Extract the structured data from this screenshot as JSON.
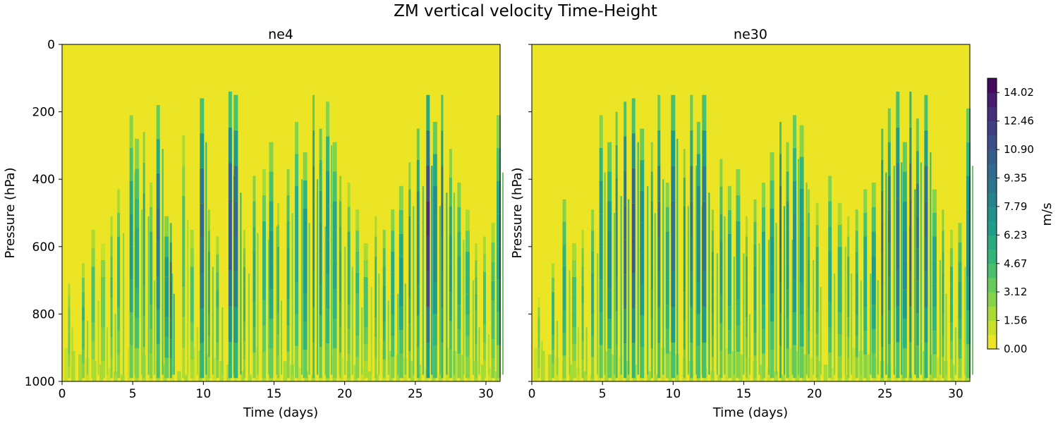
{
  "figure": {
    "title": "ZM vertical velocity Time-Height"
  },
  "chart_data": [
    {
      "type": "heatmap",
      "title": "ne4",
      "xlabel": "Time (days)",
      "ylabel": "Pressure (hPa)",
      "xlim": [
        0,
        31
      ],
      "ylim": [
        1000,
        0
      ],
      "xticks": [
        "0",
        "5",
        "10",
        "15",
        "20",
        "25",
        "30"
      ],
      "yticks": [
        "0",
        "200",
        "400",
        "600",
        "800",
        "1000"
      ],
      "background_value": 0.0,
      "convective_events": [
        {
          "t": 0.5,
          "top": 720,
          "max": 4.5
        },
        {
          "t": 1.5,
          "top": 660,
          "max": 5.5
        },
        {
          "t": 2.2,
          "top": 560,
          "max": 5.0
        },
        {
          "t": 2.9,
          "top": 600,
          "max": 4.0
        },
        {
          "t": 3.5,
          "top": 520,
          "max": 5.5
        },
        {
          "t": 4.0,
          "top": 440,
          "max": 6.0
        },
        {
          "t": 4.9,
          "top": 220,
          "max": 7.5
        },
        {
          "t": 5.3,
          "top": 290,
          "max": 6.5
        },
        {
          "t": 5.8,
          "top": 270,
          "max": 7.0
        },
        {
          "t": 6.3,
          "top": 420,
          "max": 6.0
        },
        {
          "t": 6.8,
          "top": 190,
          "max": 10.0
        },
        {
          "t": 7.4,
          "top": 520,
          "max": 8.0
        },
        {
          "t": 7.7,
          "top": 540,
          "max": 11.0
        },
        {
          "t": 8.6,
          "top": 280,
          "max": 5.0
        },
        {
          "t": 9.2,
          "top": 560,
          "max": 5.0
        },
        {
          "t": 9.9,
          "top": 170,
          "max": 11.0
        },
        {
          "t": 10.4,
          "top": 500,
          "max": 7.0
        },
        {
          "t": 11.0,
          "top": 580,
          "max": 5.5
        },
        {
          "t": 11.9,
          "top": 150,
          "max": 12.0
        },
        {
          "t": 12.3,
          "top": 160,
          "max": 11.0
        },
        {
          "t": 12.9,
          "top": 560,
          "max": 6.0
        },
        {
          "t": 13.6,
          "top": 400,
          "max": 6.5
        },
        {
          "t": 14.3,
          "top": 380,
          "max": 6.0
        },
        {
          "t": 14.8,
          "top": 300,
          "max": 7.5
        },
        {
          "t": 15.3,
          "top": 480,
          "max": 6.0
        },
        {
          "t": 16.0,
          "top": 380,
          "max": 6.5
        },
        {
          "t": 16.6,
          "top": 240,
          "max": 7.0
        },
        {
          "t": 17.2,
          "top": 330,
          "max": 8.0
        },
        {
          "t": 17.8,
          "top": 160,
          "max": 9.0
        },
        {
          "t": 18.3,
          "top": 260,
          "max": 8.5
        },
        {
          "t": 18.8,
          "top": 180,
          "max": 8.0
        },
        {
          "t": 19.3,
          "top": 300,
          "max": 7.0
        },
        {
          "t": 19.7,
          "top": 400,
          "max": 6.5
        },
        {
          "t": 20.3,
          "top": 420,
          "max": 6.0
        },
        {
          "t": 20.9,
          "top": 500,
          "max": 5.5
        },
        {
          "t": 21.5,
          "top": 600,
          "max": 5.0
        },
        {
          "t": 22.2,
          "top": 520,
          "max": 6.0
        },
        {
          "t": 22.8,
          "top": 560,
          "max": 6.5
        },
        {
          "t": 23.4,
          "top": 500,
          "max": 7.0
        },
        {
          "t": 24.0,
          "top": 430,
          "max": 7.5
        },
        {
          "t": 24.6,
          "top": 360,
          "max": 8.0
        },
        {
          "t": 25.2,
          "top": 260,
          "max": 9.0
        },
        {
          "t": 25.9,
          "top": 160,
          "max": 14.5
        },
        {
          "t": 26.4,
          "top": 240,
          "max": 9.0
        },
        {
          "t": 26.9,
          "top": 160,
          "max": 11.0
        },
        {
          "t": 27.5,
          "top": 320,
          "max": 7.5
        },
        {
          "t": 28.1,
          "top": 420,
          "max": 6.5
        },
        {
          "t": 28.7,
          "top": 500,
          "max": 6.0
        },
        {
          "t": 29.3,
          "top": 600,
          "max": 5.5
        },
        {
          "t": 29.9,
          "top": 580,
          "max": 5.0
        },
        {
          "t": 30.5,
          "top": 540,
          "max": 5.5
        },
        {
          "t": 30.9,
          "top": 220,
          "max": 7.0
        }
      ]
    },
    {
      "type": "heatmap",
      "title": "ne30",
      "xlabel": "Time (days)",
      "ylabel": "Pressure (hPa)",
      "xlim": [
        0,
        31
      ],
      "ylim": [
        1000,
        0
      ],
      "xticks": [
        "0",
        "5",
        "10",
        "15",
        "20",
        "25",
        "30"
      ],
      "yticks": [],
      "background_value": 0.0,
      "convective_events": [
        {
          "t": 0.5,
          "top": 760,
          "max": 4.0
        },
        {
          "t": 1.5,
          "top": 660,
          "max": 6.0
        },
        {
          "t": 2.3,
          "top": 470,
          "max": 6.5
        },
        {
          "t": 3.0,
          "top": 600,
          "max": 5.0
        },
        {
          "t": 3.6,
          "top": 560,
          "max": 5.5
        },
        {
          "t": 4.3,
          "top": 500,
          "max": 6.5
        },
        {
          "t": 4.9,
          "top": 220,
          "max": 8.0
        },
        {
          "t": 5.5,
          "top": 300,
          "max": 8.5
        },
        {
          "t": 6.0,
          "top": 210,
          "max": 9.0
        },
        {
          "t": 6.6,
          "top": 180,
          "max": 11.5
        },
        {
          "t": 7.2,
          "top": 170,
          "max": 12.0
        },
        {
          "t": 7.8,
          "top": 260,
          "max": 9.0
        },
        {
          "t": 8.5,
          "top": 300,
          "max": 8.0
        },
        {
          "t": 9.0,
          "top": 160,
          "max": 10.0
        },
        {
          "t": 9.6,
          "top": 420,
          "max": 7.0
        },
        {
          "t": 10.0,
          "top": 160,
          "max": 10.5
        },
        {
          "t": 10.8,
          "top": 320,
          "max": 8.0
        },
        {
          "t": 11.3,
          "top": 160,
          "max": 10.0
        },
        {
          "t": 11.8,
          "top": 240,
          "max": 9.0
        },
        {
          "t": 12.2,
          "top": 160,
          "max": 10.5
        },
        {
          "t": 12.8,
          "top": 500,
          "max": 7.0
        },
        {
          "t": 13.4,
          "top": 350,
          "max": 7.5
        },
        {
          "t": 14.0,
          "top": 430,
          "max": 7.0
        },
        {
          "t": 14.6,
          "top": 380,
          "max": 7.0
        },
        {
          "t": 15.2,
          "top": 520,
          "max": 6.0
        },
        {
          "t": 15.8,
          "top": 470,
          "max": 6.5
        },
        {
          "t": 16.4,
          "top": 420,
          "max": 7.0
        },
        {
          "t": 17.0,
          "top": 330,
          "max": 7.5
        },
        {
          "t": 17.6,
          "top": 240,
          "max": 11.0
        },
        {
          "t": 18.1,
          "top": 300,
          "max": 8.0
        },
        {
          "t": 18.6,
          "top": 220,
          "max": 8.5
        },
        {
          "t": 19.1,
          "top": 250,
          "max": 8.0
        },
        {
          "t": 19.6,
          "top": 440,
          "max": 6.5
        },
        {
          "t": 20.2,
          "top": 480,
          "max": 6.0
        },
        {
          "t": 21.1,
          "top": 400,
          "max": 6.5
        },
        {
          "t": 21.8,
          "top": 480,
          "max": 6.0
        },
        {
          "t": 22.4,
          "top": 520,
          "max": 6.0
        },
        {
          "t": 23.0,
          "top": 500,
          "max": 6.5
        },
        {
          "t": 23.6,
          "top": 440,
          "max": 7.0
        },
        {
          "t": 24.2,
          "top": 420,
          "max": 7.5
        },
        {
          "t": 24.8,
          "top": 260,
          "max": 11.0
        },
        {
          "t": 25.3,
          "top": 200,
          "max": 10.0
        },
        {
          "t": 25.9,
          "top": 150,
          "max": 10.5
        },
        {
          "t": 26.4,
          "top": 300,
          "max": 8.5
        },
        {
          "t": 26.8,
          "top": 150,
          "max": 12.5
        },
        {
          "t": 27.3,
          "top": 230,
          "max": 10.0
        },
        {
          "t": 27.9,
          "top": 160,
          "max": 11.0
        },
        {
          "t": 28.5,
          "top": 440,
          "max": 7.0
        },
        {
          "t": 29.1,
          "top": 500,
          "max": 6.5
        },
        {
          "t": 29.7,
          "top": 560,
          "max": 6.0
        },
        {
          "t": 30.3,
          "top": 540,
          "max": 6.5
        },
        {
          "t": 30.9,
          "top": 200,
          "max": 8.5
        }
      ]
    }
  ],
  "colorbar": {
    "label": "m/s",
    "colormap": "viridis_r",
    "vmin": 0.0,
    "vmax": 14.8,
    "levels": 19,
    "tick_labels": [
      "0.00",
      "1.56",
      "3.12",
      "4.67",
      "6.23",
      "7.79",
      "9.35",
      "10.90",
      "12.46",
      "14.02"
    ]
  }
}
